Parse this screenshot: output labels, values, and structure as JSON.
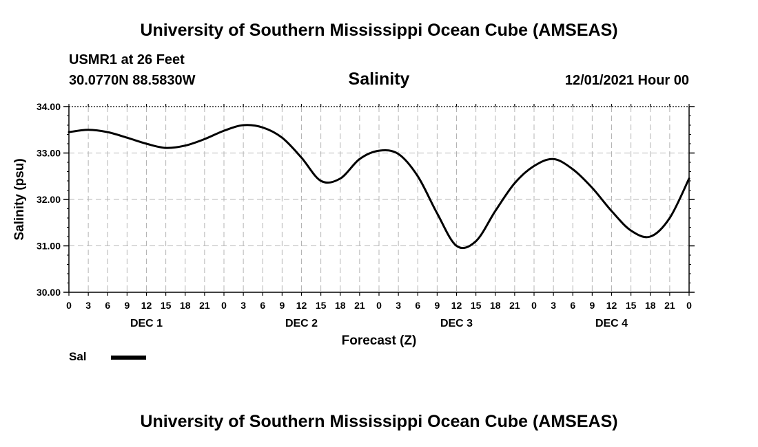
{
  "header": {
    "title": "University of Southern Mississippi Ocean Cube (AMSEAS)",
    "station": "USMR1 at 26 Feet",
    "coordinates": "30.0770N  88.5830W",
    "parameter": "Salinity",
    "run_time": "12/01/2021 Hour 00"
  },
  "footer": {
    "title": "University of Southern Mississippi Ocean Cube (AMSEAS)"
  },
  "legend": {
    "label": "Sal",
    "color": "#000000"
  },
  "chart_data": {
    "type": "line",
    "title": "Salinity",
    "xlabel": "Forecast (Z)",
    "ylabel": "Salinity (psu)",
    "ylim": [
      30.0,
      34.0
    ],
    "yticks": [
      "30.00",
      "31.00",
      "32.00",
      "33.00",
      "34.00"
    ],
    "xlim": [
      0,
      96
    ],
    "x_tick_step_hours": 3,
    "x_tick_labels": [
      "0",
      "3",
      "6",
      "9",
      "12",
      "15",
      "18",
      "21",
      "0",
      "3",
      "6",
      "9",
      "12",
      "15",
      "18",
      "21",
      "0",
      "3",
      "6",
      "9",
      "12",
      "15",
      "18",
      "21",
      "0",
      "3",
      "6",
      "9",
      "12",
      "15",
      "18",
      "21",
      "0"
    ],
    "day_labels": [
      {
        "label": "DEC 1",
        "hour": 12
      },
      {
        "label": "DEC 2",
        "hour": 36
      },
      {
        "label": "DEC 3",
        "hour": 60
      },
      {
        "label": "DEC 4",
        "hour": 84
      }
    ],
    "grid": true,
    "series": [
      {
        "name": "Sal",
        "x": [
          0,
          3,
          6,
          9,
          12,
          15,
          18,
          21,
          24,
          27,
          30,
          33,
          36,
          39,
          42,
          45,
          48,
          51,
          54,
          57,
          60,
          63,
          66,
          69,
          72,
          75,
          78,
          81,
          84,
          87,
          90,
          93,
          96
        ],
        "values": [
          33.45,
          33.5,
          33.45,
          33.33,
          33.2,
          33.11,
          33.16,
          33.3,
          33.48,
          33.6,
          33.55,
          33.33,
          32.9,
          32.4,
          32.45,
          32.87,
          33.05,
          32.98,
          32.5,
          31.7,
          31.0,
          31.1,
          31.75,
          32.35,
          32.72,
          32.87,
          32.65,
          32.25,
          31.75,
          31.33,
          31.2,
          31.6,
          32.45
        ]
      }
    ]
  }
}
